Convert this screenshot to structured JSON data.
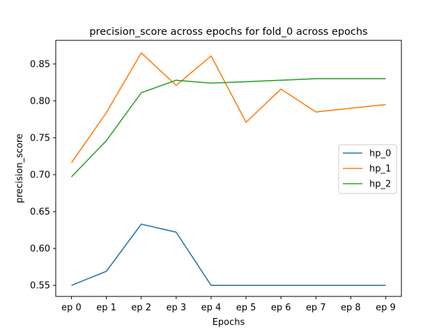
{
  "chart_data": {
    "type": "line",
    "title": "precision_score across epochs for fold_0 across epochs",
    "xlabel": "Epochs",
    "ylabel": "precision_score",
    "categories": [
      "ep 0",
      "ep 1",
      "ep 2",
      "ep 3",
      "ep 4",
      "ep 5",
      "ep 6",
      "ep 7",
      "ep 8",
      "ep 9"
    ],
    "ylim": [
      0.535,
      0.882
    ],
    "yticks": [
      "0.55",
      "0.60",
      "0.65",
      "0.70",
      "0.75",
      "0.80",
      "0.85"
    ],
    "legend_position": "center-right",
    "grid": false,
    "series": [
      {
        "name": "hp_0",
        "color": "#1f77b4",
        "values": [
          0.55,
          0.569,
          0.633,
          0.622,
          0.55,
          0.55,
          0.55,
          0.55,
          0.55,
          0.55
        ]
      },
      {
        "name": "hp_1",
        "color": "#ff7f0e",
        "values": [
          0.716,
          0.784,
          0.865,
          0.821,
          0.861,
          0.771,
          0.816,
          0.785,
          0.79,
          0.795
        ]
      },
      {
        "name": "hp_2",
        "color": "#2ca02c",
        "values": [
          0.697,
          0.746,
          0.811,
          0.828,
          0.824,
          0.826,
          0.828,
          0.83,
          0.83,
          0.83
        ]
      }
    ]
  }
}
